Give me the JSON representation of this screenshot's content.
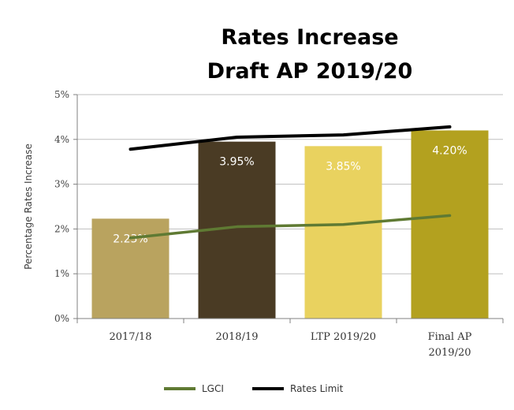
{
  "chart_data": {
    "type": "bar",
    "title_lines": [
      "Rates Increase",
      "Draft AP 2019/20"
    ],
    "ylabel": "Percentage Rates Increase",
    "xlabel": "",
    "ylim": [
      0,
      5
    ],
    "yticks": [
      0,
      1,
      2,
      3,
      4,
      5
    ],
    "ytick_labels": [
      "0%",
      "1%",
      "2%",
      "3%",
      "4%",
      "5%"
    ],
    "grid": true,
    "categories": [
      [
        "2017/18"
      ],
      [
        "2018/19"
      ],
      [
        "LTP 2019/20"
      ],
      [
        "Final AP",
        "2019/20"
      ]
    ],
    "values": [
      2.23,
      3.95,
      3.85,
      4.2
    ],
    "data_labels": [
      "2.23%",
      "3.95%",
      "3.85%",
      "4.20%"
    ],
    "bar_colors": [
      "#b9a35f",
      "#4a3b24",
      "#e9d25f",
      "#b3a11f"
    ],
    "series": [
      {
        "name": "LGCI",
        "type": "line",
        "color": "#5f7a33",
        "values": [
          1.8,
          2.05,
          2.1,
          2.3
        ]
      },
      {
        "name": "Rates Limit",
        "type": "line",
        "color": "#000000",
        "values": [
          3.78,
          4.05,
          4.1,
          4.28
        ]
      }
    ],
    "legend_position": "bottom"
  }
}
